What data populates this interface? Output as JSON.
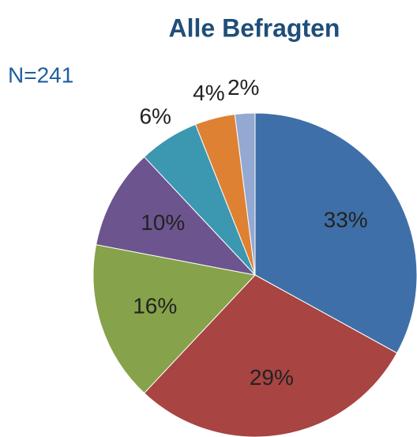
{
  "chart_data": {
    "type": "pie",
    "title": "Alle Befragten",
    "annotation": "N=241",
    "categories": [
      null,
      null,
      null,
      null,
      null,
      null,
      null
    ],
    "values": [
      33,
      29,
      16,
      10,
      6,
      4,
      2
    ],
    "value_labels": [
      "33%",
      "29%",
      "16%",
      "10%",
      "6%",
      "4%",
      "2%"
    ],
    "colors": [
      "#3f6fa8",
      "#a84442",
      "#86a24a",
      "#6c548e",
      "#3c97b0",
      "#de8132",
      "#93a9d2"
    ]
  }
}
